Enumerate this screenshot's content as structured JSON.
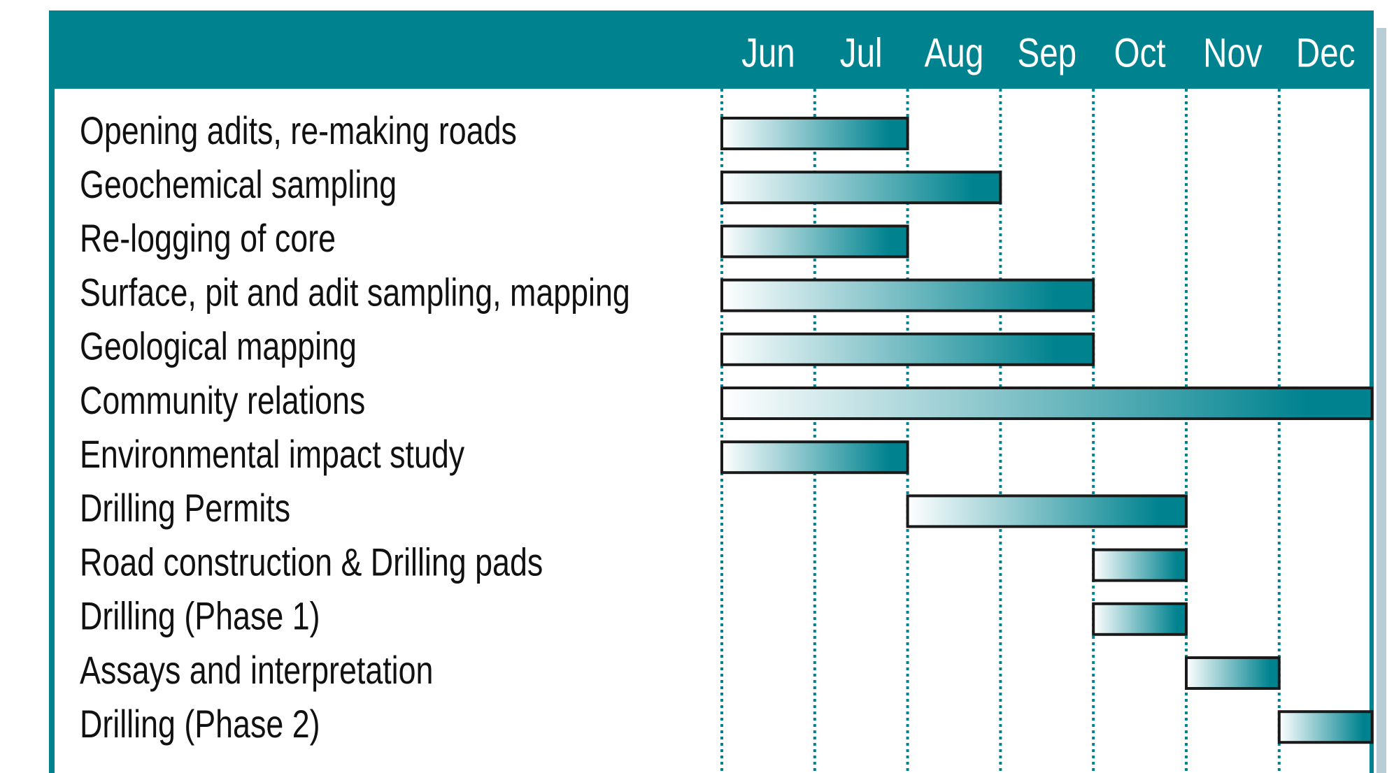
{
  "chart_data": {
    "type": "gantt",
    "categories": [
      "Jun",
      "Jul",
      "Aug",
      "Sep",
      "Oct",
      "Nov",
      "Dec"
    ],
    "color": "#00838f",
    "tasks": [
      {
        "name": "Opening adits, re-making roads",
        "start": "Jun",
        "end": "Jul"
      },
      {
        "name": "Geochemical sampling",
        "start": "Jun",
        "end": "Aug"
      },
      {
        "name": "Re-logging of core",
        "start": "Jun",
        "end": "Jul"
      },
      {
        "name": "Surface, pit and adit sampling, mapping",
        "start": "Jun",
        "end": "Sep"
      },
      {
        "name": "Geological mapping",
        "start": "Jun",
        "end": "Sep"
      },
      {
        "name": "Community relations",
        "start": "Jun",
        "end": "Dec"
      },
      {
        "name": "Environmental impact study",
        "start": "Jun",
        "end": "Jul"
      },
      {
        "name": "Drilling Permits",
        "start": "Aug",
        "end": "Oct"
      },
      {
        "name": "Road construction & Drilling pads",
        "start": "Oct",
        "end": "Oct"
      },
      {
        "name": "Drilling (Phase 1)",
        "start": "Oct",
        "end": "Oct"
      },
      {
        "name": "Assays and interpretation",
        "start": "Nov",
        "end": "Nov"
      },
      {
        "name": "Drilling (Phase 2)",
        "start": "Dec",
        "end": "Dec"
      }
    ]
  }
}
